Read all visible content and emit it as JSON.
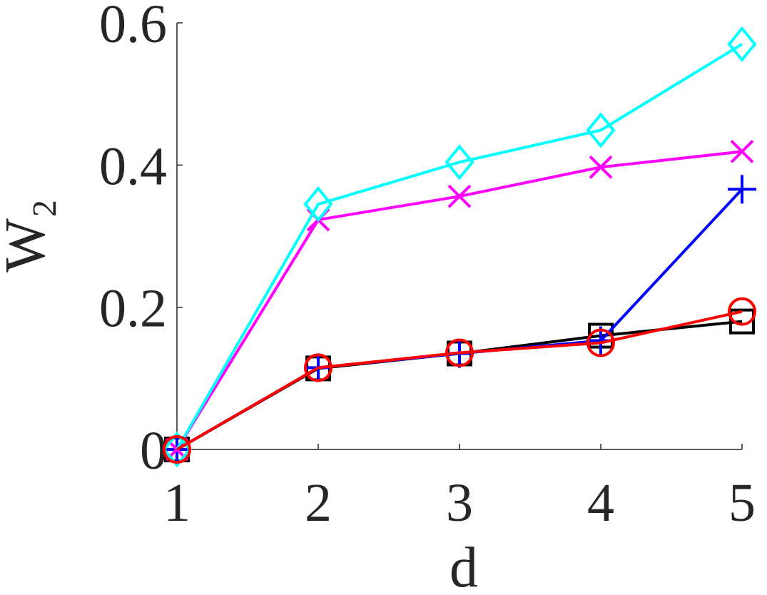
{
  "chart_data": {
    "type": "line",
    "xlabel": "d",
    "ylabel": "W₂",
    "x": [
      1,
      2,
      3,
      4,
      5
    ],
    "xlim": [
      1,
      5
    ],
    "xticks": [
      1,
      2,
      3,
      4,
      5
    ],
    "ylim": [
      0,
      0.6
    ],
    "yticks": [
      0,
      0.2,
      0.4,
      0.6
    ],
    "grid": false,
    "series": [
      {
        "color": "#000000",
        "marker": "square",
        "values": [
          0,
          0.114,
          0.135,
          0.16,
          0.18
        ]
      },
      {
        "color": "#0000ff",
        "marker": "plus",
        "values": [
          0,
          0.115,
          0.135,
          0.153,
          0.366
        ]
      },
      {
        "color": "#ff00ff",
        "marker": "x",
        "values": [
          0,
          0.323,
          0.356,
          0.397,
          0.419
        ]
      },
      {
        "color": "#00ffff",
        "marker": "diamond",
        "values": [
          0,
          0.345,
          0.404,
          0.449,
          0.57
        ]
      },
      {
        "color": "#ff0000",
        "marker": "circle",
        "values": [
          0,
          0.115,
          0.136,
          0.15,
          0.194
        ]
      }
    ]
  }
}
